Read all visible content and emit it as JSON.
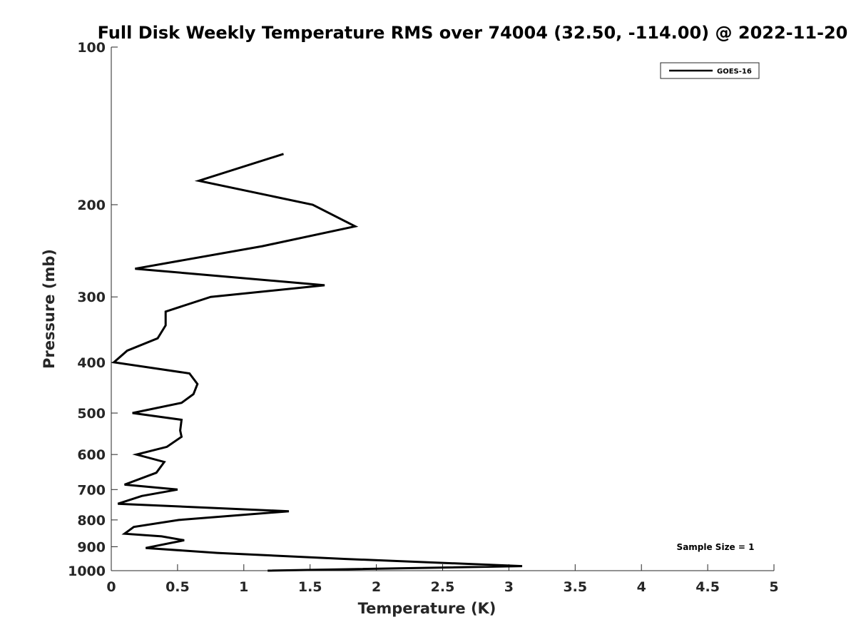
{
  "chart_data": {
    "type": "line",
    "title": "Full Disk Weekly Temperature RMS over 74004 (32.50, -114.00) @ 2022-11-20",
    "xlabel": "Temperature (K)",
    "ylabel": "Pressure (mb)",
    "xlim": [
      0,
      5
    ],
    "ylim": [
      100,
      1000
    ],
    "y_scale": "log",
    "y_reversed": true,
    "x_ticks": [
      "0",
      "0.5",
      "1",
      "1.5",
      "2",
      "2.5",
      "3",
      "3.5",
      "4",
      "4.5",
      "5"
    ],
    "y_ticks": [
      "100",
      "200",
      "300",
      "400",
      "500",
      "600",
      "700",
      "800",
      "900",
      "1000"
    ],
    "grid": false,
    "legend_position": "top-right",
    "series": [
      {
        "name": "GOES-16",
        "color": "#000000",
        "x": [
          1.3,
          0.66,
          1.52,
          1.84,
          1.14,
          0.18,
          1.61,
          0.75,
          0.41,
          0.41,
          0.35,
          0.12,
          0.02,
          0.59,
          0.65,
          0.62,
          0.53,
          0.16,
          0.53,
          0.52,
          0.53,
          0.42,
          0.19,
          0.4,
          0.34,
          0.1,
          0.5,
          0.23,
          0.05,
          1.34,
          0.51,
          0.17,
          0.1,
          0.38,
          0.55,
          0.26,
          0.8,
          1.77,
          3.1,
          1.18
        ],
        "y": [
          160,
          180,
          200,
          220,
          240,
          265,
          285,
          300,
          320,
          340,
          360,
          380,
          400,
          420,
          440,
          460,
          478,
          500,
          515,
          540,
          555,
          580,
          600,
          620,
          650,
          685,
          700,
          720,
          745,
          770,
          800,
          825,
          850,
          860,
          875,
          905,
          925,
          950,
          980,
          1000
        ]
      }
    ],
    "annotations": [
      "Sample Size = 1"
    ]
  }
}
